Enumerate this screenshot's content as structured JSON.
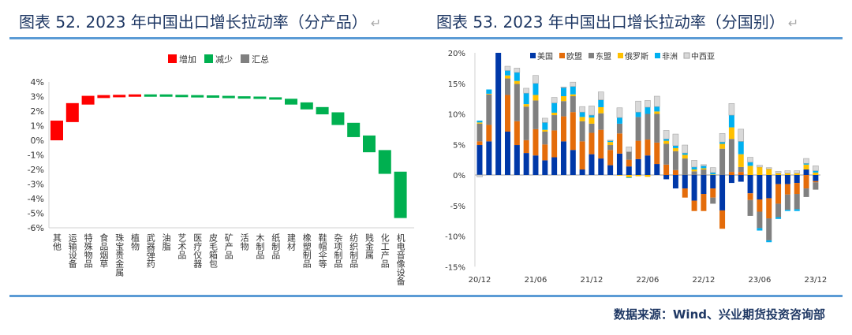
{
  "titles": {
    "left": "图表 52. 2023 年中国出口增长拉动率（分产品）",
    "right": "图表 53. 2023 年中国出口增长拉动率（分国别）",
    "return_mark": "↵"
  },
  "source": "数据来源：Wind、兴业期货投资咨询部",
  "colors": {
    "increase": "#FF0000",
    "decrease": "#00B050",
    "total": "#808080",
    "us": "#0038A8",
    "eu": "#E46C0A",
    "asean": "#808080",
    "russia": "#FFC000",
    "africa": "#00B0F0",
    "cwa": "#D9D9D9",
    "title": "#1F3864",
    "rule": "#5B9BD5"
  },
  "chart_data": [
    {
      "type": "waterfall",
      "title": "",
      "legend": [
        "增加",
        "减少",
        "汇总"
      ],
      "legend_position": "top-center",
      "ylim": [
        -6,
        4
      ],
      "yticks": [
        "-6%",
        "-5%",
        "-4%",
        "-3%",
        "-2%",
        "-1%",
        "0%",
        "1%",
        "2%",
        "3%",
        "4%"
      ],
      "categories": [
        "其他",
        "运输设备",
        "特殊物品",
        "食品烟草",
        "珠宝贵金属",
        "植物",
        "武器弹药",
        "油脂",
        "艺术品",
        "医疗仪器",
        "皮毛箱包",
        "矿产品",
        "活物",
        "木制品",
        "纸制品",
        "建材",
        "橡塑制品",
        "鞋帽伞等",
        "杂项制品",
        "纺织制品",
        "贱金属",
        "化工产品",
        "机电音像设备"
      ],
      "bars": [
        {
          "from": 0,
          "to": 1.35,
          "kind": "increase"
        },
        {
          "from": 1.25,
          "to": 2.55,
          "kind": "increase"
        },
        {
          "from": 2.45,
          "to": 3.05,
          "kind": "increase"
        },
        {
          "from": 2.9,
          "to": 3.1,
          "kind": "increase"
        },
        {
          "from": 2.95,
          "to": 3.12,
          "kind": "increase"
        },
        {
          "from": 3.0,
          "to": 3.15,
          "kind": "increase"
        },
        {
          "from": 3.15,
          "to": 3.05,
          "kind": "decrease"
        },
        {
          "from": 3.15,
          "to": 3.05,
          "kind": "decrease"
        },
        {
          "from": 3.12,
          "to": 3.02,
          "kind": "decrease"
        },
        {
          "from": 3.1,
          "to": 3.0,
          "kind": "decrease"
        },
        {
          "from": 3.08,
          "to": 2.98,
          "kind": "decrease"
        },
        {
          "from": 3.05,
          "to": 2.95,
          "kind": "decrease"
        },
        {
          "from": 3.02,
          "to": 2.92,
          "kind": "decrease"
        },
        {
          "from": 3.0,
          "to": 2.88,
          "kind": "decrease"
        },
        {
          "from": 2.95,
          "to": 2.8,
          "kind": "decrease"
        },
        {
          "from": 2.85,
          "to": 2.45,
          "kind": "decrease"
        },
        {
          "from": 2.6,
          "to": 2.12,
          "kind": "decrease"
        },
        {
          "from": 2.28,
          "to": 1.78,
          "kind": "decrease"
        },
        {
          "from": 1.92,
          "to": 1.05,
          "kind": "decrease"
        },
        {
          "from": 1.2,
          "to": 0.22,
          "kind": "decrease"
        },
        {
          "from": 0.33,
          "to": -0.82,
          "kind": "decrease"
        },
        {
          "from": -0.67,
          "to": -2.3,
          "kind": "decrease"
        },
        {
          "from": -2.15,
          "to": -5.33,
          "kind": "decrease"
        }
      ]
    },
    {
      "type": "stacked-bar",
      "ylim": [
        -15,
        20
      ],
      "yticks": [
        "-15%",
        "-10%",
        "-5%",
        "0%",
        "5%",
        "10%",
        "15%",
        "20%"
      ],
      "xtick_labels": [
        "20/12",
        "21/06",
        "21/12",
        "22/06",
        "22/12",
        "23/06",
        "23/12"
      ],
      "legend_position": "top",
      "series": [
        {
          "name": "美国",
          "key": "us",
          "values": [
            4.9,
            5.5,
            20,
            7.1,
            4.9,
            3.6,
            3.2,
            2.4,
            2.9,
            5.5,
            4.1,
            0.9,
            3.4,
            2.7,
            1.6,
            3.5,
            1.4,
            2.6,
            3.2,
            1.8,
            -0.7,
            -2.2,
            -2.2,
            -4.2,
            -3.1,
            -2.2,
            -5.8,
            -1.3,
            -1.1,
            -3.0,
            -4.0,
            -3.8,
            -1.5,
            -1.5,
            -1.3,
            0.9,
            -1.0
          ]
        },
        {
          "name": "欧盟",
          "key": "eu",
          "values": [
            0.6,
            2.7,
            0,
            6.0,
            3.9,
            2.1,
            4.3,
            2.6,
            4.4,
            4.1,
            6.2,
            4.6,
            3.5,
            4.7,
            2.5,
            3.3,
            1.1,
            3.0,
            2.6,
            3.5,
            1.7,
            0.8,
            -1.5,
            -1.7,
            -2.8,
            -1.5,
            -3.0,
            0.5,
            0.5,
            -1.1,
            -2.0,
            -3.3,
            -3.2,
            -1.7,
            -1.8,
            -2.2,
            -0.2
          ]
        },
        {
          "name": "东盟",
          "key": "asean",
          "values": [
            2.9,
            5.0,
            0,
            2.7,
            6.1,
            5.5,
            4.7,
            2.1,
            2.5,
            2.5,
            2.6,
            3.3,
            1.5,
            2.7,
            0.8,
            1.6,
            1.3,
            3.9,
            4.2,
            4.7,
            3.4,
            3.1,
            2.7,
            0.6,
            0.9,
            -1.0,
            4.3,
            5.4,
            0.8,
            -2.6,
            -2.7,
            -3.6,
            -2.2,
            -2.5,
            -2.5,
            -1.4,
            -1.2
          ]
        },
        {
          "name": "俄罗斯",
          "key": "russia",
          "values": [
            0.2,
            0.1,
            0,
            0.5,
            0.5,
            0.4,
            0.9,
            0.3,
            0.4,
            0.8,
            0.3,
            0.7,
            1.0,
            1.0,
            0.5,
            -0.1,
            -0.4,
            -0.2,
            -0.3,
            0.4,
            0.5,
            0.5,
            0.6,
            0.3,
            0.2,
            0.1,
            0.8,
            1.9,
            2.1,
            1.5,
            1.3,
            1.0,
            0.3,
            0.3,
            0.3,
            0.8,
            0.4
          ]
        },
        {
          "name": "非洲",
          "key": "africa",
          "values": [
            0.3,
            0.7,
            0,
            0.8,
            1.4,
            1.8,
            1.9,
            1.2,
            1.6,
            1.4,
            1.3,
            0.8,
            0.4,
            1.2,
            0.2,
            1.0,
            -0.1,
            0.8,
            1.1,
            0.8,
            0.3,
            0.4,
            0.3,
            0.4,
            0.4,
            0.3,
            0.3,
            2.0,
            2.1,
            0.6,
            -0.4,
            -0.3,
            -0.3,
            -0.2,
            -0.3,
            0.2,
            0.3
          ]
        },
        {
          "name": "中西亚",
          "key": "cwa",
          "values": [
            -0.3,
            0,
            0,
            0.7,
            0.7,
            0.8,
            1.3,
            0.7,
            0.9,
            0.1,
            0.7,
            0.9,
            1.5,
            1.3,
            0.1,
            1.6,
            0.8,
            1.8,
            1.1,
            1.7,
            1.4,
            1.9,
            1.3,
            1.1,
            0.2,
            0.8,
            1.4,
            1.9,
            2.0,
            0.8,
            0.3,
            0.2,
            0.3,
            0.4,
            0.4,
            0.8,
            0.8
          ]
        }
      ]
    }
  ]
}
